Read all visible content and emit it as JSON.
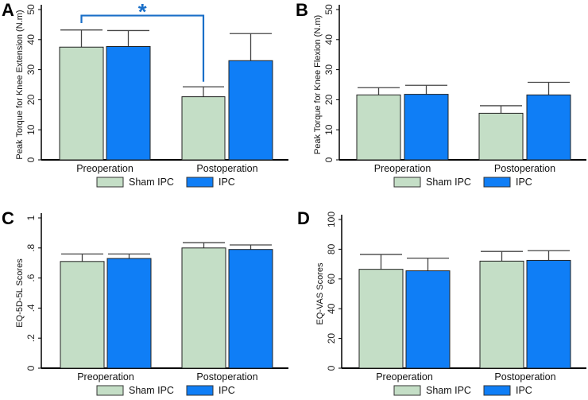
{
  "chart_data": [
    {
      "panel": "A",
      "type": "bar",
      "ylabel": "Peak Torque for Knee Extension (N.m)",
      "ylim": [
        0,
        50
      ],
      "yticks": [
        "0",
        "10",
        "20",
        "30",
        "40",
        "50"
      ],
      "ytick_values": [
        0,
        10,
        20,
        30,
        40,
        50
      ],
      "categories": [
        "Preoperation",
        "Postoperation"
      ],
      "series": [
        {
          "name": "Sham IPC",
          "values": [
            37.5,
            21.0
          ],
          "error_upper": [
            43.2,
            24.3
          ],
          "color": "#c4dec6"
        },
        {
          "name": "IPC",
          "values": [
            37.7,
            33.0
          ],
          "error_upper": [
            43.0,
            42.0
          ],
          "color": "#0f7ef6"
        }
      ],
      "annotation": {
        "text": "*",
        "compares": [
          "Sham IPC Preoperation",
          "Sham IPC Postoperation"
        ],
        "color": "#1a6fc8"
      }
    },
    {
      "panel": "B",
      "type": "bar",
      "ylabel": "Peak Torque for Knee Flexion (N.m)",
      "ylim": [
        0,
        50
      ],
      "yticks": [
        "0",
        "10",
        "20",
        "30",
        "40",
        "50"
      ],
      "ytick_values": [
        0,
        10,
        20,
        30,
        40,
        50
      ],
      "categories": [
        "Preoperation",
        "Postoperation"
      ],
      "series": [
        {
          "name": "Sham IPC",
          "values": [
            21.6,
            15.5
          ],
          "error_upper": [
            24.0,
            18.0
          ],
          "color": "#c4dec6"
        },
        {
          "name": "IPC",
          "values": [
            21.8,
            21.6
          ],
          "error_upper": [
            24.8,
            25.8
          ],
          "color": "#0f7ef6"
        }
      ]
    },
    {
      "panel": "C",
      "type": "bar",
      "ylabel": "EQ-5D-5L Scores",
      "ylim": [
        0,
        1
      ],
      "yticks": [
        "0",
        ".2",
        ".4",
        ".6",
        ".8",
        "1"
      ],
      "ytick_values": [
        0,
        0.2,
        0.4,
        0.6,
        0.8,
        1
      ],
      "categories": [
        "Preoperation",
        "Postoperation"
      ],
      "series": [
        {
          "name": "Sham IPC",
          "values": [
            0.71,
            0.8
          ],
          "error_upper": [
            0.76,
            0.835
          ],
          "color": "#c4dec6"
        },
        {
          "name": "IPC",
          "values": [
            0.73,
            0.79
          ],
          "error_upper": [
            0.76,
            0.82
          ],
          "color": "#0f7ef6"
        }
      ]
    },
    {
      "panel": "D",
      "type": "bar",
      "ylabel": "EQ-VAS Scores",
      "ylim": [
        0,
        100
      ],
      "yticks": [
        "0",
        "20",
        "40",
        "60",
        "80",
        "100"
      ],
      "ytick_values": [
        0,
        20,
        40,
        60,
        80,
        100
      ],
      "categories": [
        "Preoperation",
        "Postoperation"
      ],
      "series": [
        {
          "name": "Sham IPC",
          "values": [
            66.5,
            72.0
          ],
          "error_upper": [
            76.5,
            78.5
          ],
          "color": "#c4dec6"
        },
        {
          "name": "IPC",
          "values": [
            65.5,
            72.5
          ],
          "error_upper": [
            74.0,
            79.0
          ],
          "color": "#0f7ef6"
        }
      ]
    }
  ]
}
